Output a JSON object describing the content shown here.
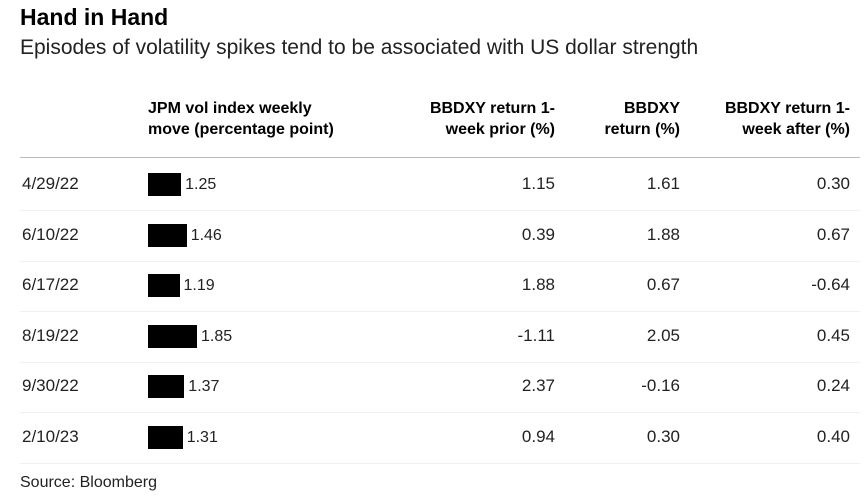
{
  "chart_data": {
    "type": "table",
    "title": "Hand in Hand",
    "subtitle": "Episodes of volatility spikes tend to be associated with US dollar strength",
    "columns": [
      "JPM vol index weekly move (percentage point)",
      "BBDXY return 1-week prior (%)",
      "BBDXY return (%)",
      "BBDXY return 1-week after (%)"
    ],
    "headers": {
      "c2": [
        "JPM vol index weekly",
        "move (percentage point)"
      ],
      "c3": [
        "BBDXY return 1-",
        "week prior (%)"
      ],
      "c4": [
        "BBDXY",
        "return (%)"
      ],
      "c5": [
        "BBDXY return 1-",
        "week after (%)"
      ]
    },
    "rows": [
      {
        "date": "4/29/22",
        "vol": "1.25",
        "prior": "1.15",
        "ret": "1.61",
        "after": "0.30"
      },
      {
        "date": "6/10/22",
        "vol": "1.46",
        "prior": "0.39",
        "ret": "1.88",
        "after": "0.67"
      },
      {
        "date": "6/17/22",
        "vol": "1.19",
        "prior": "1.88",
        "ret": "0.67",
        "after": "-0.64"
      },
      {
        "date": "8/19/22",
        "vol": "1.85",
        "prior": "-1.11",
        "ret": "2.05",
        "after": "0.45"
      },
      {
        "date": "9/30/22",
        "vol": "1.37",
        "prior": "2.37",
        "ret": "-0.16",
        "after": "0.24"
      },
      {
        "date": "2/10/23",
        "vol": "1.31",
        "prior": "0.94",
        "ret": "0.30",
        "after": "0.40"
      }
    ],
    "bar_color": "#000000",
    "source": "Source: Bloomberg"
  }
}
